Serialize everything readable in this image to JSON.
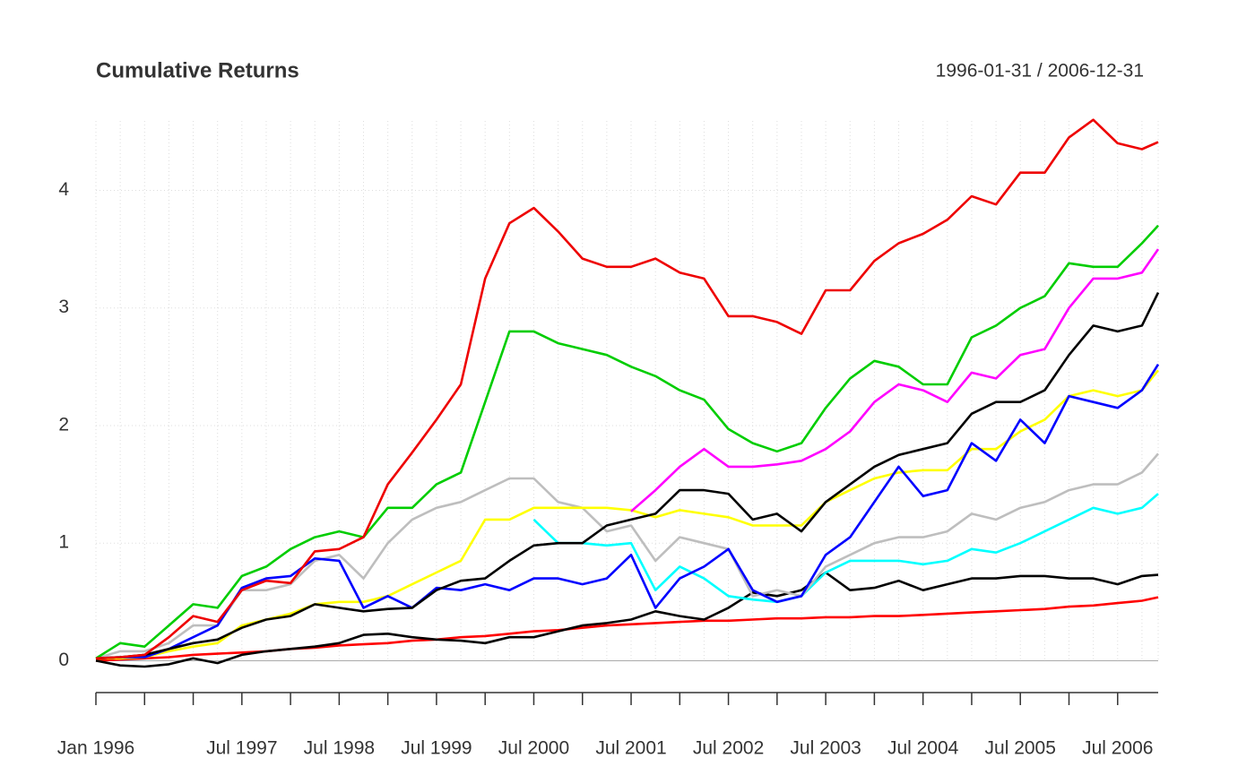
{
  "chart_data": {
    "type": "line",
    "title": "Cumulative Returns",
    "subtitle": "1996-01-31 / 2006-12-31",
    "x": [
      "1996-01",
      "1996-04",
      "1996-07",
      "1996-10",
      "1997-01",
      "1997-04",
      "1997-07",
      "1997-10",
      "1998-01",
      "1998-04",
      "1998-07",
      "1998-10",
      "1999-01",
      "1999-04",
      "1999-07",
      "1999-10",
      "2000-01",
      "2000-04",
      "2000-07",
      "2000-10",
      "2001-01",
      "2001-04",
      "2001-07",
      "2001-10",
      "2002-01",
      "2002-04",
      "2002-07",
      "2002-10",
      "2003-01",
      "2003-04",
      "2003-07",
      "2003-10",
      "2004-01",
      "2004-04",
      "2004-07",
      "2004-10",
      "2005-01",
      "2005-04",
      "2005-07",
      "2005-10",
      "2006-01",
      "2006-04",
      "2006-07",
      "2006-10",
      "2006-12"
    ],
    "xlim": [
      "1996-01",
      "2006-12"
    ],
    "xticks": [
      {
        "value": "1996-01",
        "label": "Jan 1996"
      },
      {
        "value": "1997-07",
        "label": "Jul 1997"
      },
      {
        "value": "1998-07",
        "label": "Jul 1998"
      },
      {
        "value": "1999-07",
        "label": "Jul 1999"
      },
      {
        "value": "2000-07",
        "label": "Jul 2000"
      },
      {
        "value": "2001-07",
        "label": "Jul 2001"
      },
      {
        "value": "2002-07",
        "label": "Jul 2002"
      },
      {
        "value": "2003-07",
        "label": "Jul 2003"
      },
      {
        "value": "2004-07",
        "label": "Jul 2004"
      },
      {
        "value": "2005-07",
        "label": "Jul 2005"
      },
      {
        "value": "2006-07",
        "label": "Jul 2006"
      }
    ],
    "ylim": [
      -0.21,
      4.59
    ],
    "yticks": [
      0,
      1,
      2,
      3,
      4
    ],
    "grid": true,
    "series": [
      {
        "color": "#ff0000",
        "values": [
          0,
          0.01,
          0.02,
          0.03,
          0.05,
          0.06,
          0.07,
          0.08,
          0.1,
          0.11,
          0.13,
          0.14,
          0.15,
          0.17,
          0.18,
          0.2,
          0.21,
          0.23,
          0.25,
          0.26,
          0.28,
          0.3,
          0.31,
          0.32,
          0.33,
          0.34,
          0.34,
          0.35,
          0.36,
          0.36,
          0.37,
          0.37,
          0.38,
          0.38,
          0.39,
          0.4,
          0.41,
          0.42,
          0.43,
          0.44,
          0.46,
          0.47,
          0.49,
          0.51,
          0.54
        ]
      },
      {
        "color": "#000000",
        "values": [
          0,
          -0.04,
          -0.05,
          -0.03,
          0.02,
          -0.02,
          0.05,
          0.08,
          0.1,
          0.12,
          0.15,
          0.22,
          0.23,
          0.2,
          0.18,
          0.17,
          0.15,
          0.2,
          0.2,
          0.25,
          0.3,
          0.32,
          0.35,
          0.42,
          0.38,
          0.35,
          0.45,
          0.58,
          0.55,
          0.6,
          0.75,
          0.6,
          0.62,
          0.68,
          0.6,
          0.65,
          0.7,
          0.7,
          0.72,
          0.72,
          0.7,
          0.7,
          0.65,
          0.72,
          0.73
        ]
      },
      {
        "color": "#00ffff",
        "values": [
          null,
          null,
          null,
          null,
          null,
          null,
          null,
          null,
          null,
          null,
          null,
          null,
          null,
          null,
          null,
          null,
          null,
          null,
          1.2,
          1.0,
          1.0,
          0.98,
          1.0,
          0.6,
          0.8,
          0.7,
          0.55,
          0.52,
          0.5,
          0.55,
          0.75,
          0.85,
          0.85,
          0.85,
          0.82,
          0.85,
          0.95,
          0.92,
          1.0,
          1.1,
          1.2,
          1.3,
          1.25,
          1.3,
          1.42
        ]
      },
      {
        "color": "#bebebe",
        "values": [
          0.02,
          0.08,
          0.08,
          0.15,
          0.3,
          0.3,
          0.6,
          0.6,
          0.65,
          0.85,
          0.9,
          0.7,
          1.0,
          1.2,
          1.3,
          1.35,
          1.45,
          1.55,
          1.55,
          1.35,
          1.3,
          1.1,
          1.15,
          0.85,
          1.05,
          1.0,
          0.95,
          0.55,
          0.6,
          0.55,
          0.8,
          0.9,
          1.0,
          1.05,
          1.05,
          1.1,
          1.25,
          1.2,
          1.3,
          1.35,
          1.45,
          1.5,
          1.5,
          1.6,
          1.76
        ]
      },
      {
        "color": "#ffff00",
        "values": [
          0.02,
          0.02,
          0.03,
          0.08,
          0.12,
          0.15,
          0.3,
          0.35,
          0.4,
          0.48,
          0.5,
          0.5,
          0.55,
          0.65,
          0.75,
          0.85,
          1.2,
          1.2,
          1.3,
          1.3,
          1.3,
          1.3,
          1.28,
          1.22,
          1.28,
          1.25,
          1.22,
          1.15,
          1.15,
          1.15,
          1.35,
          1.45,
          1.55,
          1.6,
          1.62,
          1.62,
          1.8,
          1.8,
          1.95,
          2.05,
          2.25,
          2.3,
          2.25,
          2.3,
          2.47
        ]
      },
      {
        "color": "#0000ff",
        "values": [
          0.02,
          0.03,
          0.03,
          0.1,
          0.2,
          0.3,
          0.62,
          0.7,
          0.72,
          0.87,
          0.85,
          0.45,
          0.55,
          0.45,
          0.62,
          0.6,
          0.65,
          0.6,
          0.7,
          0.7,
          0.65,
          0.7,
          0.9,
          0.45,
          0.7,
          0.8,
          0.95,
          0.6,
          0.5,
          0.55,
          0.9,
          1.05,
          1.35,
          1.65,
          1.4,
          1.45,
          1.85,
          1.7,
          2.05,
          1.85,
          2.25,
          2.2,
          2.15,
          2.3,
          2.52
        ]
      },
      {
        "color": "#000000",
        "values": [
          0.02,
          0.03,
          0.05,
          0.1,
          0.15,
          0.18,
          0.28,
          0.35,
          0.38,
          0.48,
          0.45,
          0.42,
          0.44,
          0.45,
          0.6,
          0.68,
          0.7,
          0.85,
          0.98,
          1.0,
          1.0,
          1.15,
          1.2,
          1.25,
          1.45,
          1.45,
          1.42,
          1.2,
          1.25,
          1.1,
          1.35,
          1.5,
          1.65,
          1.75,
          1.8,
          1.85,
          2.1,
          2.2,
          2.2,
          2.3,
          2.6,
          2.85,
          2.8,
          2.85,
          3.13
        ]
      },
      {
        "color": "#ff00ff",
        "values": [
          null,
          null,
          null,
          null,
          null,
          null,
          null,
          null,
          null,
          null,
          null,
          null,
          null,
          null,
          null,
          null,
          null,
          null,
          null,
          null,
          null,
          null,
          1.27,
          1.45,
          1.65,
          1.8,
          1.65,
          1.65,
          1.67,
          1.7,
          1.8,
          1.95,
          2.2,
          2.35,
          2.3,
          2.2,
          2.45,
          2.4,
          2.6,
          2.65,
          3.0,
          3.25,
          3.25,
          3.3,
          3.5
        ]
      },
      {
        "color": "#00cd00",
        "values": [
          0.02,
          0.15,
          0.12,
          0.3,
          0.48,
          0.45,
          0.72,
          0.8,
          0.95,
          1.05,
          1.1,
          1.05,
          1.3,
          1.3,
          1.5,
          1.6,
          2.2,
          2.8,
          2.8,
          2.7,
          2.65,
          2.6,
          2.5,
          2.42,
          2.3,
          2.22,
          1.97,
          1.85,
          1.78,
          1.85,
          2.15,
          2.4,
          2.55,
          2.5,
          2.35,
          2.35,
          2.75,
          2.85,
          3.0,
          3.1,
          3.38,
          3.35,
          3.35,
          3.55,
          3.7
        ]
      },
      {
        "color": "#ee0000",
        "values": [
          0.02,
          0.03,
          0.05,
          0.2,
          0.38,
          0.33,
          0.6,
          0.68,
          0.66,
          0.93,
          0.95,
          1.05,
          1.5,
          1.77,
          2.05,
          2.35,
          3.25,
          3.72,
          3.85,
          3.65,
          3.42,
          3.35,
          3.35,
          3.42,
          3.3,
          3.25,
          2.93,
          2.93,
          2.88,
          2.78,
          3.15,
          3.15,
          3.4,
          3.55,
          3.63,
          3.75,
          3.95,
          3.88,
          4.15,
          4.15,
          4.45,
          4.6,
          4.4,
          4.35,
          4.41
        ]
      }
    ]
  }
}
